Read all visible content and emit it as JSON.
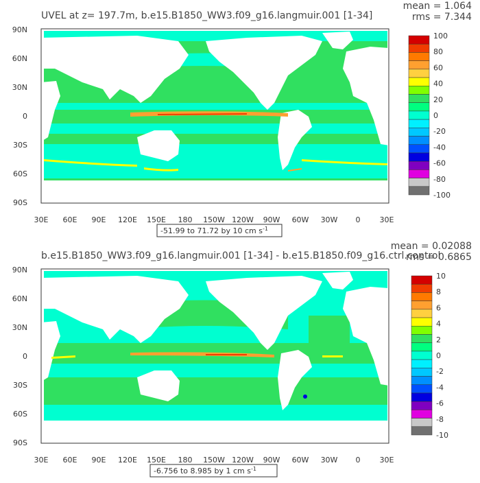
{
  "panel1": {
    "title": "UVEL at z= 197.7m, b.e15.B1850_WW3.f09_g16.langmuir.001 [1-34]",
    "mean": "mean = 1.064",
    "rms": "rms = 7.344",
    "range_label": "-51.99 to 71.72 by 10 cm s",
    "range_exp": "-1"
  },
  "panel2": {
    "title": "b.e15.B1850_WW3.f09_g16.langmuir.001 [1-34] - b.e15.B1850.f09_g16.ctrl.control",
    "mean": "mean = 0.02088",
    "rms": "rms = 0.6865",
    "range_label": "-6.756 to 8.985 by 1 cm s",
    "range_exp": "-1"
  },
  "chart_data": [
    {
      "type": "heatmap",
      "title": "UVEL at z= 197.7m, b.e15.B1850_WW3.f09_g16.langmuir.001 [1-34]",
      "subtitle": "-51.99 to 71.72 by 10 cm s-1",
      "mean": 1.064,
      "rms": 7.344,
      "x_ticks": [
        "30E",
        "60E",
        "90E",
        "120E",
        "150E",
        "180",
        "150W",
        "120W",
        "90W",
        "60W",
        "30W",
        "0",
        "30E"
      ],
      "y_ticks": [
        "90N",
        "60N",
        "30N",
        "0",
        "30S",
        "60S",
        "90S"
      ],
      "colorbar": {
        "labels": [
          "100",
          "80",
          "60",
          "40",
          "20",
          "0",
          "-20",
          "-40",
          "-60",
          "-80",
          "-100"
        ],
        "colors": [
          "#d40000",
          "#f03c00",
          "#ff7a00",
          "#ffa030",
          "#ffd040",
          "#ffff00",
          "#80ff00",
          "#30e060",
          "#00ff80",
          "#00ffd0",
          "#00f0ff",
          "#00c8ff",
          "#0090ff",
          "#0050ff",
          "#0000e0",
          "#8000c0",
          "#e000e0",
          "#c8c8c8",
          "#707070"
        ]
      }
    },
    {
      "type": "heatmap",
      "title": "b.e15.B1850_WW3.f09_g16.langmuir.001 [1-34] - b.e15.B1850.f09_g16.ctrl.control",
      "subtitle": "-6.756 to 8.985 by 1 cm s-1",
      "mean": 0.02088,
      "rms": 0.6865,
      "x_ticks": [
        "30E",
        "60E",
        "90E",
        "120E",
        "150E",
        "180",
        "150W",
        "120W",
        "90W",
        "60W",
        "30W",
        "0",
        "30E"
      ],
      "y_ticks": [
        "90N",
        "60N",
        "30N",
        "0",
        "30S",
        "60S",
        "90S"
      ],
      "colorbar": {
        "labels": [
          "10",
          "8",
          "6",
          "4",
          "2",
          "0",
          "-2",
          "-4",
          "-6",
          "-8",
          "-10"
        ],
        "colors": [
          "#d40000",
          "#f03c00",
          "#ff7a00",
          "#ffa030",
          "#ffd040",
          "#ffff00",
          "#80ff00",
          "#30e060",
          "#00ff80",
          "#00ffd0",
          "#00f0ff",
          "#00c8ff",
          "#0090ff",
          "#0050ff",
          "#0000e0",
          "#8000c0",
          "#e000e0",
          "#c8c8c8",
          "#707070"
        ]
      }
    }
  ]
}
